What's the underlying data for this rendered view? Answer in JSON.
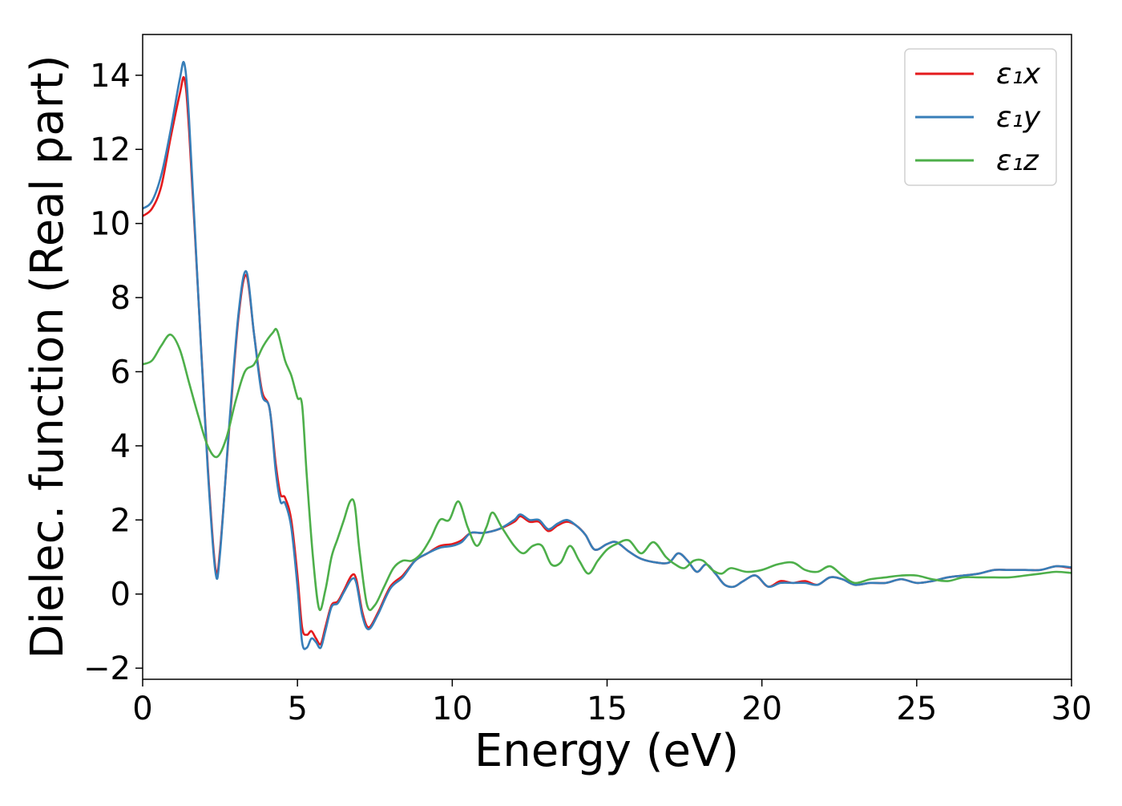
{
  "chart_data": {
    "type": "line",
    "title": "",
    "xlabel": "Energy (eV)",
    "ylabel": "Dielec. function (Real part)",
    "xlim": [
      0,
      30
    ],
    "ylim": [
      -2.3,
      15.1
    ],
    "xticks": [
      0,
      5,
      10,
      15,
      20,
      25,
      30
    ],
    "yticks": [
      -2,
      0,
      2,
      4,
      6,
      8,
      10,
      12,
      14
    ],
    "xtick_labels": [
      "0",
      "5",
      "10",
      "15",
      "20",
      "25",
      "30"
    ],
    "ytick_labels": [
      "−2",
      "0",
      "2",
      "4",
      "6",
      "8",
      "10",
      "12",
      "14"
    ],
    "grid": false,
    "legend_position": "top-right",
    "series": [
      {
        "name": "ε₁x",
        "color": "#e41a1c",
        "points": [
          [
            0,
            10.2
          ],
          [
            0.3,
            10.4
          ],
          [
            0.6,
            11.0
          ],
          [
            0.9,
            12.3
          ],
          [
            1.2,
            13.5
          ],
          [
            1.35,
            13.9
          ],
          [
            1.5,
            12.5
          ],
          [
            1.8,
            8.0
          ],
          [
            2.1,
            3.5
          ],
          [
            2.35,
            0.7
          ],
          [
            2.5,
            1.2
          ],
          [
            2.8,
            4.5
          ],
          [
            3.1,
            7.5
          ],
          [
            3.35,
            8.6
          ],
          [
            3.6,
            7.0
          ],
          [
            3.85,
            5.5
          ],
          [
            4.1,
            5.0
          ],
          [
            4.3,
            3.5
          ],
          [
            4.45,
            2.7
          ],
          [
            4.6,
            2.6
          ],
          [
            4.8,
            2.0
          ],
          [
            5.0,
            0.5
          ],
          [
            5.15,
            -0.9
          ],
          [
            5.3,
            -1.1
          ],
          [
            5.45,
            -1.0
          ],
          [
            5.6,
            -1.2
          ],
          [
            5.75,
            -1.35
          ],
          [
            5.9,
            -0.9
          ],
          [
            6.1,
            -0.3
          ],
          [
            6.3,
            -0.2
          ],
          [
            6.5,
            0.1
          ],
          [
            6.75,
            0.5
          ],
          [
            6.9,
            0.4
          ],
          [
            7.1,
            -0.5
          ],
          [
            7.3,
            -0.9
          ],
          [
            7.6,
            -0.5
          ],
          [
            8.0,
            0.2
          ],
          [
            8.4,
            0.5
          ],
          [
            8.8,
            0.9
          ],
          [
            9.2,
            1.1
          ],
          [
            9.6,
            1.3
          ],
          [
            10.0,
            1.35
          ],
          [
            10.3,
            1.45
          ],
          [
            10.6,
            1.65
          ],
          [
            11.0,
            1.65
          ],
          [
            11.5,
            1.75
          ],
          [
            12.0,
            1.95
          ],
          [
            12.2,
            2.1
          ],
          [
            12.5,
            1.95
          ],
          [
            12.8,
            1.95
          ],
          [
            13.1,
            1.7
          ],
          [
            13.4,
            1.85
          ],
          [
            13.7,
            1.95
          ],
          [
            14.0,
            1.85
          ],
          [
            14.3,
            1.6
          ],
          [
            14.6,
            1.2
          ],
          [
            15.0,
            1.35
          ],
          [
            15.3,
            1.4
          ],
          [
            15.7,
            1.15
          ],
          [
            16.1,
            0.95
          ],
          [
            16.6,
            0.85
          ],
          [
            17.0,
            0.85
          ],
          [
            17.3,
            1.1
          ],
          [
            17.6,
            0.9
          ],
          [
            17.9,
            0.6
          ],
          [
            18.2,
            0.8
          ],
          [
            18.5,
            0.55
          ],
          [
            18.8,
            0.25
          ],
          [
            19.1,
            0.2
          ],
          [
            19.4,
            0.35
          ],
          [
            19.8,
            0.5
          ],
          [
            20.2,
            0.2
          ],
          [
            20.6,
            0.35
          ],
          [
            21.0,
            0.3
          ],
          [
            21.4,
            0.35
          ],
          [
            21.8,
            0.25
          ],
          [
            22.2,
            0.45
          ],
          [
            22.6,
            0.4
          ],
          [
            23.0,
            0.25
          ],
          [
            23.5,
            0.3
          ],
          [
            24.0,
            0.3
          ],
          [
            24.5,
            0.4
          ],
          [
            25.0,
            0.3
          ],
          [
            25.5,
            0.35
          ],
          [
            26.0,
            0.45
          ],
          [
            26.5,
            0.5
          ],
          [
            27.0,
            0.55
          ],
          [
            27.5,
            0.65
          ],
          [
            28.0,
            0.65
          ],
          [
            28.5,
            0.65
          ],
          [
            29.0,
            0.65
          ],
          [
            29.5,
            0.75
          ],
          [
            30,
            0.7
          ]
        ]
      },
      {
        "name": "ε₁y",
        "color": "#377eb8",
        "points": [
          [
            0,
            10.4
          ],
          [
            0.3,
            10.6
          ],
          [
            0.6,
            11.3
          ],
          [
            0.9,
            12.5
          ],
          [
            1.2,
            13.9
          ],
          [
            1.35,
            14.3
          ],
          [
            1.5,
            12.8
          ],
          [
            1.8,
            8.0
          ],
          [
            2.1,
            3.4
          ],
          [
            2.35,
            0.6
          ],
          [
            2.5,
            1.1
          ],
          [
            2.8,
            4.6
          ],
          [
            3.1,
            7.6
          ],
          [
            3.35,
            8.7
          ],
          [
            3.6,
            7.0
          ],
          [
            3.85,
            5.4
          ],
          [
            4.1,
            5.0
          ],
          [
            4.3,
            3.3
          ],
          [
            4.45,
            2.5
          ],
          [
            4.6,
            2.45
          ],
          [
            4.8,
            1.8
          ],
          [
            5.0,
            0.2
          ],
          [
            5.15,
            -1.3
          ],
          [
            5.3,
            -1.45
          ],
          [
            5.45,
            -1.2
          ],
          [
            5.6,
            -1.3
          ],
          [
            5.75,
            -1.45
          ],
          [
            5.9,
            -1.0
          ],
          [
            6.1,
            -0.35
          ],
          [
            6.3,
            -0.25
          ],
          [
            6.5,
            0.05
          ],
          [
            6.75,
            0.4
          ],
          [
            6.9,
            0.3
          ],
          [
            7.1,
            -0.6
          ],
          [
            7.3,
            -0.95
          ],
          [
            7.6,
            -0.55
          ],
          [
            8.0,
            0.15
          ],
          [
            8.4,
            0.45
          ],
          [
            8.8,
            0.9
          ],
          [
            9.2,
            1.1
          ],
          [
            9.6,
            1.25
          ],
          [
            10.0,
            1.3
          ],
          [
            10.3,
            1.4
          ],
          [
            10.6,
            1.65
          ],
          [
            11.0,
            1.65
          ],
          [
            11.5,
            1.75
          ],
          [
            12.0,
            2.0
          ],
          [
            12.2,
            2.15
          ],
          [
            12.5,
            2.0
          ],
          [
            12.8,
            2.0
          ],
          [
            13.1,
            1.75
          ],
          [
            13.4,
            1.9
          ],
          [
            13.7,
            2.0
          ],
          [
            14.0,
            1.85
          ],
          [
            14.3,
            1.6
          ],
          [
            14.6,
            1.2
          ],
          [
            15.0,
            1.35
          ],
          [
            15.3,
            1.4
          ],
          [
            15.7,
            1.15
          ],
          [
            16.1,
            0.95
          ],
          [
            16.6,
            0.85
          ],
          [
            17.0,
            0.85
          ],
          [
            17.3,
            1.1
          ],
          [
            17.6,
            0.9
          ],
          [
            17.9,
            0.6
          ],
          [
            18.2,
            0.8
          ],
          [
            18.5,
            0.55
          ],
          [
            18.8,
            0.25
          ],
          [
            19.1,
            0.2
          ],
          [
            19.4,
            0.35
          ],
          [
            19.8,
            0.5
          ],
          [
            20.2,
            0.2
          ],
          [
            20.6,
            0.3
          ],
          [
            21.0,
            0.3
          ],
          [
            21.4,
            0.3
          ],
          [
            21.8,
            0.25
          ],
          [
            22.2,
            0.45
          ],
          [
            22.6,
            0.4
          ],
          [
            23.0,
            0.25
          ],
          [
            23.5,
            0.3
          ],
          [
            24.0,
            0.3
          ],
          [
            24.5,
            0.4
          ],
          [
            25.0,
            0.3
          ],
          [
            25.5,
            0.35
          ],
          [
            26.0,
            0.45
          ],
          [
            26.5,
            0.5
          ],
          [
            27.0,
            0.55
          ],
          [
            27.5,
            0.65
          ],
          [
            28.0,
            0.65
          ],
          [
            28.5,
            0.65
          ],
          [
            29.0,
            0.65
          ],
          [
            29.5,
            0.75
          ],
          [
            30,
            0.72
          ]
        ]
      },
      {
        "name": "ε₁z",
        "color": "#4daf4a",
        "points": [
          [
            0,
            6.2
          ],
          [
            0.3,
            6.3
          ],
          [
            0.6,
            6.7
          ],
          [
            0.9,
            7.0
          ],
          [
            1.2,
            6.6
          ],
          [
            1.5,
            5.7
          ],
          [
            1.8,
            4.8
          ],
          [
            2.1,
            4.0
          ],
          [
            2.4,
            3.7
          ],
          [
            2.7,
            4.2
          ],
          [
            3.0,
            5.2
          ],
          [
            3.3,
            6.0
          ],
          [
            3.6,
            6.2
          ],
          [
            3.9,
            6.7
          ],
          [
            4.2,
            7.05
          ],
          [
            4.35,
            7.1
          ],
          [
            4.6,
            6.3
          ],
          [
            4.8,
            5.9
          ],
          [
            5.0,
            5.3
          ],
          [
            5.15,
            5.1
          ],
          [
            5.3,
            3.2
          ],
          [
            5.5,
            1.0
          ],
          [
            5.7,
            -0.4
          ],
          [
            5.9,
            0.1
          ],
          [
            6.1,
            1.0
          ],
          [
            6.3,
            1.5
          ],
          [
            6.5,
            2.0
          ],
          [
            6.7,
            2.5
          ],
          [
            6.85,
            2.4
          ],
          [
            7.0,
            1.2
          ],
          [
            7.25,
            -0.3
          ],
          [
            7.5,
            -0.3
          ],
          [
            7.8,
            0.2
          ],
          [
            8.1,
            0.7
          ],
          [
            8.4,
            0.9
          ],
          [
            8.7,
            0.9
          ],
          [
            9.0,
            1.1
          ],
          [
            9.3,
            1.5
          ],
          [
            9.6,
            2.0
          ],
          [
            9.9,
            2.0
          ],
          [
            10.2,
            2.5
          ],
          [
            10.5,
            1.8
          ],
          [
            10.8,
            1.3
          ],
          [
            11.1,
            1.8
          ],
          [
            11.3,
            2.2
          ],
          [
            11.6,
            1.8
          ],
          [
            12.0,
            1.3
          ],
          [
            12.3,
            1.1
          ],
          [
            12.6,
            1.3
          ],
          [
            12.9,
            1.3
          ],
          [
            13.2,
            0.8
          ],
          [
            13.5,
            0.85
          ],
          [
            13.8,
            1.3
          ],
          [
            14.1,
            0.9
          ],
          [
            14.4,
            0.55
          ],
          [
            14.7,
            0.9
          ],
          [
            15.0,
            1.2
          ],
          [
            15.3,
            1.35
          ],
          [
            15.7,
            1.45
          ],
          [
            16.1,
            1.1
          ],
          [
            16.5,
            1.4
          ],
          [
            16.9,
            1.0
          ],
          [
            17.2,
            0.8
          ],
          [
            17.5,
            0.7
          ],
          [
            17.8,
            0.9
          ],
          [
            18.1,
            0.9
          ],
          [
            18.4,
            0.65
          ],
          [
            18.7,
            0.55
          ],
          [
            19.0,
            0.7
          ],
          [
            19.5,
            0.6
          ],
          [
            20.0,
            0.65
          ],
          [
            20.5,
            0.8
          ],
          [
            21.0,
            0.85
          ],
          [
            21.4,
            0.65
          ],
          [
            21.8,
            0.6
          ],
          [
            22.2,
            0.75
          ],
          [
            22.6,
            0.5
          ],
          [
            23.0,
            0.3
          ],
          [
            23.5,
            0.4
          ],
          [
            24.0,
            0.45
          ],
          [
            24.5,
            0.5
          ],
          [
            25.0,
            0.5
          ],
          [
            25.5,
            0.4
          ],
          [
            26.0,
            0.35
          ],
          [
            26.5,
            0.45
          ],
          [
            27.0,
            0.45
          ],
          [
            27.5,
            0.45
          ],
          [
            28.0,
            0.45
          ],
          [
            28.5,
            0.5
          ],
          [
            29.0,
            0.55
          ],
          [
            29.5,
            0.6
          ],
          [
            30,
            0.57
          ]
        ]
      }
    ]
  }
}
